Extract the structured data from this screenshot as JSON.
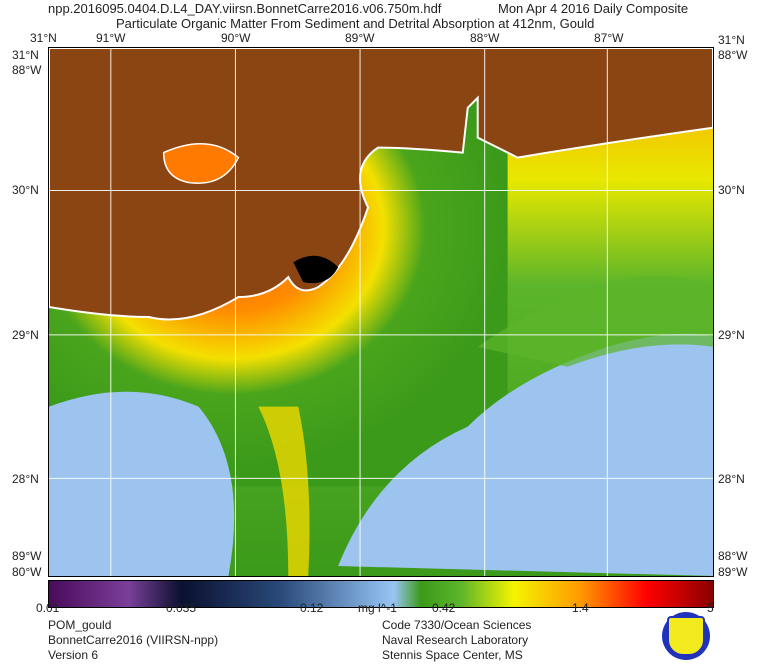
{
  "header": {
    "line1_file": "npp.2016095.0404.D.L4_DAY.viirsn.BonnetCarre2016.v06.750m.hdf",
    "line1_date": "Mon Apr  4 2016 Daily Composite",
    "line2": "Particulate Organic Matter From Sediment and Detrital Absorption at 412nm, Gould"
  },
  "map": {
    "top_lon_labels": [
      "91°W",
      "90°W",
      "89°W",
      "88°W",
      "87°W"
    ],
    "lat_labels": [
      "30°N",
      "29°N",
      "28°N"
    ],
    "corner_labels": {
      "top_left_a": "31°N",
      "top_left_b": "31°N",
      "top_left_c": "88°W",
      "top_right_a": "31°N",
      "top_right_b": "88°W",
      "bottom_left_a": "89°W",
      "bottom_left_b": "80°W",
      "bottom_right_a": "88°W",
      "bottom_right_b": "89°W"
    },
    "colors": {
      "land": "#8b4513",
      "coast": "#ffffff",
      "grid": "#ffffff"
    }
  },
  "colorbar": {
    "ticks": [
      "0.01",
      "0.035",
      "0.12",
      "0.42",
      "1.4",
      "5"
    ],
    "units": "mg l^-1",
    "scale": "log",
    "range": [
      0.01,
      5
    ]
  },
  "footer": {
    "left": [
      "POM_gould",
      "BonnetCarre2016 (VIIRSN-npp)",
      "Version 6"
    ],
    "right": [
      "Code 7330/Ocean Sciences",
      "Naval Research Laboratory",
      "Stennis Space Center, MS"
    ],
    "logo": "Naval Research Laboratory seal"
  }
}
